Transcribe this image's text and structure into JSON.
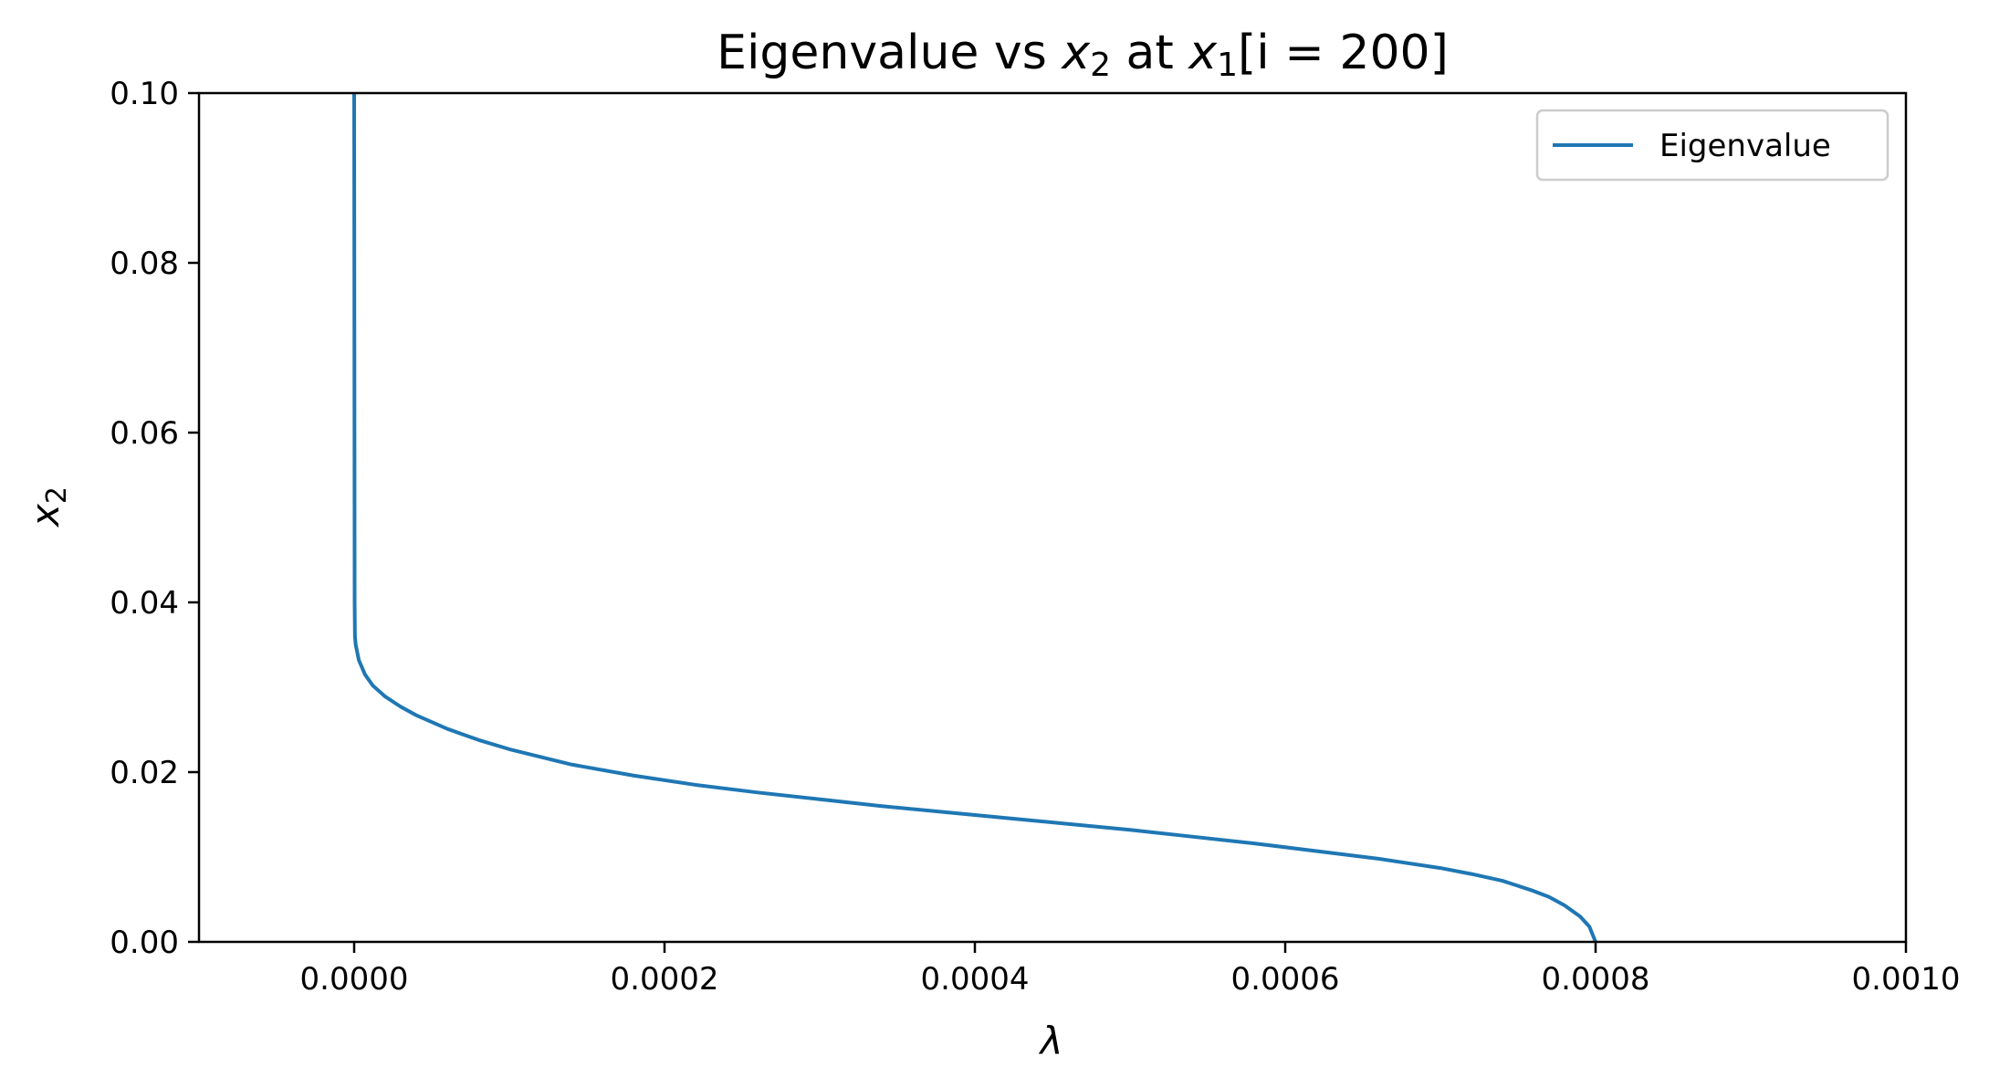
{
  "colors": {
    "series": "#1f77b4",
    "axes": "#000000",
    "legend_border": "#cccccc",
    "background": "#ffffff"
  },
  "chart_data": {
    "type": "line",
    "title": {
      "prefix": "Eigenvalue vs ",
      "var_a": "x",
      "sub_a": "2",
      "middle": " at ",
      "var_b": "x",
      "sub_b": "1",
      "suffix": "[i = 200]"
    },
    "xlabel": "λ",
    "ylabel": {
      "var": "x",
      "sub": "2"
    },
    "xlim": [
      -0.0001,
      0.001
    ],
    "ylim": [
      0.0,
      0.1
    ],
    "x_ticks": [
      0.0,
      0.0002,
      0.0004,
      0.0006,
      0.0008,
      0.001
    ],
    "x_tick_labels": [
      "0.0000",
      "0.0002",
      "0.0004",
      "0.0006",
      "0.0008",
      "0.0010"
    ],
    "y_ticks": [
      0.0,
      0.02,
      0.04,
      0.06,
      0.08,
      0.1
    ],
    "y_tick_labels": [
      "0.00",
      "0.02",
      "0.04",
      "0.06",
      "0.08",
      "0.10"
    ],
    "grid": false,
    "legend_position": "upper-right",
    "series": [
      {
        "name": "Eigenvalue",
        "x": [
          0.0008,
          0.000796,
          0.00079,
          0.00078,
          0.00077,
          0.00076,
          0.00074,
          0.00072,
          0.0007,
          0.00066,
          0.00062,
          0.00058,
          0.00054,
          0.0005,
          0.00046,
          0.00042,
          0.00038,
          0.00034,
          0.0003,
          0.00026,
          0.00022,
          0.00018,
          0.00014,
          0.0001,
          8e-05,
          6e-05,
          4e-05,
          3e-05,
          2e-05,
          1.2e-05,
          7e-06,
          3e-06,
          1e-06,
          5e-07,
          3e-07,
          2e-07,
          1e-07,
          0.0
        ],
        "y": [
          0.0,
          0.0018,
          0.003,
          0.0043,
          0.0053,
          0.006,
          0.0072,
          0.008,
          0.0087,
          0.0098,
          0.0107,
          0.0116,
          0.0124,
          0.0132,
          0.0139,
          0.0146,
          0.0153,
          0.016,
          0.0168,
          0.0176,
          0.0185,
          0.0196,
          0.0209,
          0.0227,
          0.0238,
          0.0251,
          0.0267,
          0.0277,
          0.0289,
          0.0302,
          0.0315,
          0.0332,
          0.035,
          0.036,
          0.04,
          0.06,
          0.08,
          0.1
        ]
      }
    ]
  }
}
